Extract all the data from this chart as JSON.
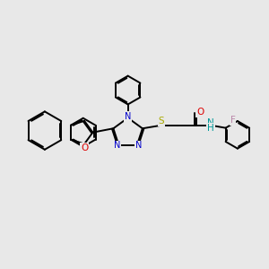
{
  "bg_color": "#e8e8e8",
  "bond_color": "#000000",
  "N_color": "#0000cc",
  "O_color": "#dd0000",
  "S_color": "#aaaa00",
  "F_color": "#bb88aa",
  "NH_color": "#009999",
  "line_width": 1.4,
  "figsize": [
    3.0,
    3.0
  ],
  "dpi": 100,
  "xlim": [
    0,
    10
  ],
  "ylim": [
    0,
    10
  ]
}
